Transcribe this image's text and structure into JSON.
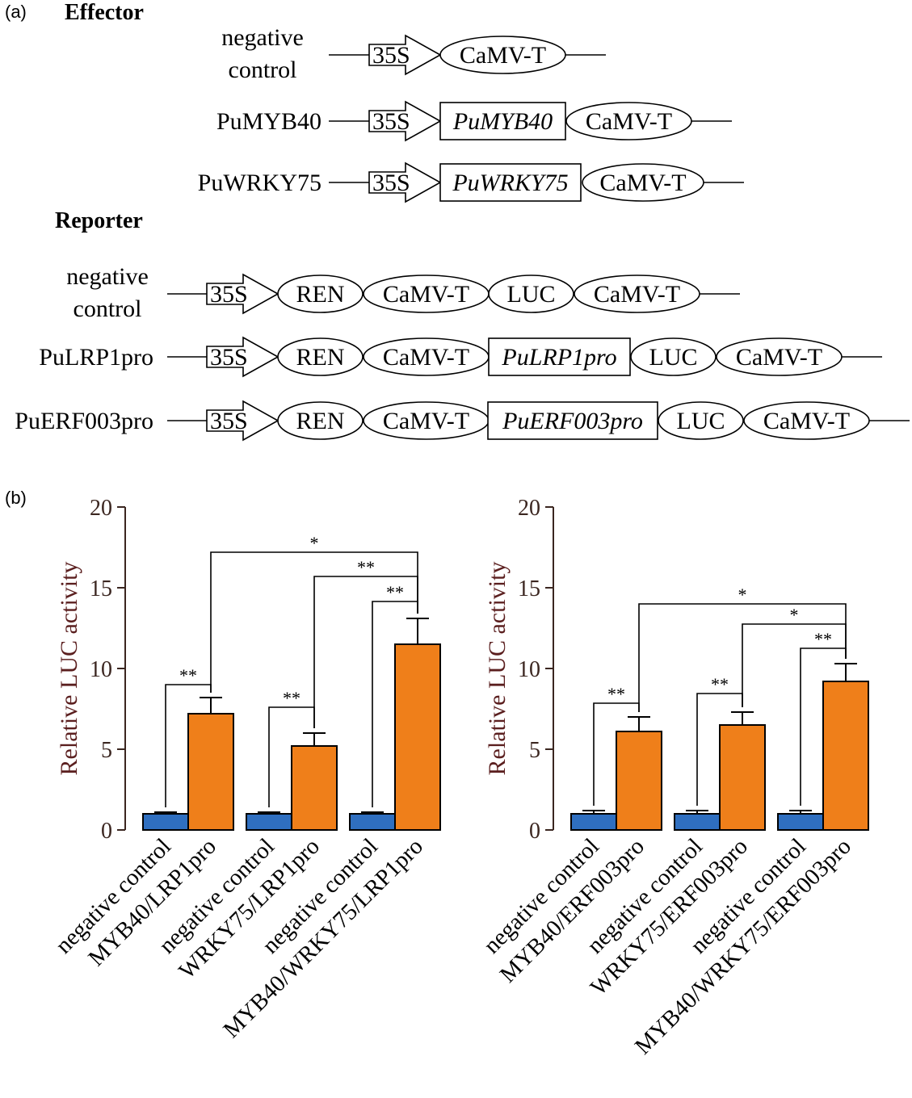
{
  "panel_a": {
    "label": "(a)",
    "effector": {
      "header": "Effector",
      "rows": [
        {
          "label_lines": [
            "negative",
            "control"
          ],
          "elements": [
            {
              "type": "arrow",
              "text": "35S"
            },
            {
              "type": "ellipse",
              "text": "CaMV-T"
            }
          ]
        },
        {
          "label_lines": [
            "PuMYB40"
          ],
          "elements": [
            {
              "type": "arrow",
              "text": "35S"
            },
            {
              "type": "rect",
              "text": "PuMYB40",
              "italic": true
            },
            {
              "type": "ellipse",
              "text": "CaMV-T"
            }
          ]
        },
        {
          "label_lines": [
            "PuWRKY75"
          ],
          "elements": [
            {
              "type": "arrow",
              "text": "35S"
            },
            {
              "type": "rect",
              "text": "PuWRKY75",
              "italic": true
            },
            {
              "type": "ellipse",
              "text": "CaMV-T"
            }
          ]
        }
      ]
    },
    "reporter": {
      "header": "Reporter",
      "rows": [
        {
          "label_lines": [
            "negative",
            "control"
          ],
          "elements": [
            {
              "type": "arrow",
              "text": "35S"
            },
            {
              "type": "ellipse",
              "text": "REN"
            },
            {
              "type": "ellipse",
              "text": "CaMV-T"
            },
            {
              "type": "ellipse",
              "text": "LUC"
            },
            {
              "type": "ellipse",
              "text": "CaMV-T"
            }
          ]
        },
        {
          "label_lines": [
            "PuLRP1pro"
          ],
          "elements": [
            {
              "type": "arrow",
              "text": "35S"
            },
            {
              "type": "ellipse",
              "text": "REN"
            },
            {
              "type": "ellipse",
              "text": "CaMV-T"
            },
            {
              "type": "rect",
              "text": "PuLRP1pro",
              "italic": true
            },
            {
              "type": "ellipse",
              "text": "LUC"
            },
            {
              "type": "ellipse",
              "text": "CaMV-T"
            }
          ]
        },
        {
          "label_lines": [
            "PuERF003pro"
          ],
          "elements": [
            {
              "type": "arrow",
              "text": "35S"
            },
            {
              "type": "ellipse",
              "text": "REN"
            },
            {
              "type": "ellipse",
              "text": "CaMV-T"
            },
            {
              "type": "rect",
              "text": "PuERF003pro",
              "italic": true
            },
            {
              "type": "ellipse",
              "text": "LUC"
            },
            {
              "type": "ellipse",
              "text": "CaMV-T"
            }
          ]
        }
      ]
    }
  },
  "panel_b": {
    "label": "(b)"
  },
  "colors": {
    "control": "#2f6fc0",
    "treatment": "#ef7f1a",
    "axis": "#3b2620",
    "ylabel": "#5b1f1f"
  },
  "chart_data": [
    {
      "type": "bar",
      "ylabel": "Relative LUC activity",
      "ylim": [
        0,
        20
      ],
      "yticks": [
        0,
        5,
        10,
        15,
        20
      ],
      "categories": [
        "negative control",
        "MYB40/LRP1pro",
        "negative control",
        "WRKY75/LRP1pro",
        "negative control",
        "MYB40/WRKY75/LRP1pro"
      ],
      "values": [
        1.0,
        7.2,
        1.0,
        5.2,
        1.0,
        11.5
      ],
      "errors": [
        0.1,
        1.0,
        0.1,
        0.8,
        0.1,
        1.6
      ],
      "bar_groups": [
        "control",
        "treatment",
        "control",
        "treatment",
        "control",
        "treatment"
      ],
      "significance": [
        {
          "from": 0,
          "to": 1,
          "label": "**"
        },
        {
          "from": 2,
          "to": 3,
          "label": "**"
        },
        {
          "from": 4,
          "to": 5,
          "label": "**"
        },
        {
          "from": 3,
          "to": 5,
          "label": "**"
        },
        {
          "from": 1,
          "to": 5,
          "label": "*"
        }
      ]
    },
    {
      "type": "bar",
      "ylabel": "Relative LUC activity",
      "ylim": [
        0,
        20
      ],
      "yticks": [
        0,
        5,
        10,
        15,
        20
      ],
      "categories": [
        "negative control",
        "MYB40/ERF003pro",
        "negative control",
        "WRKY75/ERF003pro",
        "negative control",
        "MYB40/WRKY75/ERF003pro"
      ],
      "values": [
        1.0,
        6.1,
        1.0,
        6.5,
        1.0,
        9.2
      ],
      "errors": [
        0.2,
        0.9,
        0.2,
        0.8,
        0.2,
        1.1
      ],
      "bar_groups": [
        "control",
        "treatment",
        "control",
        "treatment",
        "control",
        "treatment"
      ],
      "significance": [
        {
          "from": 0,
          "to": 1,
          "label": "**"
        },
        {
          "from": 2,
          "to": 3,
          "label": "**"
        },
        {
          "from": 4,
          "to": 5,
          "label": "**"
        },
        {
          "from": 3,
          "to": 5,
          "label": "*"
        },
        {
          "from": 1,
          "to": 5,
          "label": "*"
        }
      ]
    }
  ]
}
